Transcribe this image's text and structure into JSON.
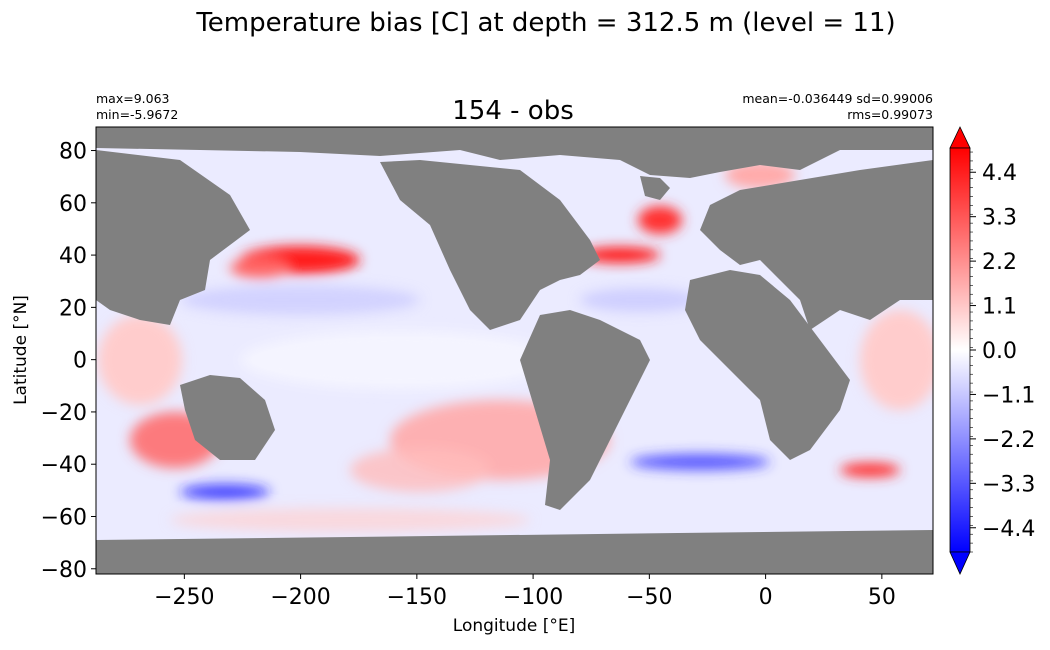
{
  "chart_data": {
    "type": "heatmap",
    "suptitle": "Temperature bias [C] at depth = 312.5 m (level = 11)",
    "title": "154 - obs",
    "stats": {
      "max": "max=9.063",
      "min": "min=-5.9672",
      "mean_sd": "mean=-0.036449 sd=0.99006",
      "rms": "rms=0.99073"
    },
    "xlabel": "Longitude [°E]",
    "ylabel": "Latitude [°N]",
    "xlim": [
      -288,
      72
    ],
    "ylim": [
      -82,
      89
    ],
    "xticks": [
      -250,
      -200,
      -150,
      -100,
      -50,
      0,
      50
    ],
    "xtick_labels": [
      "−250",
      "−200",
      "−150",
      "−100",
      "−50",
      "0",
      "50"
    ],
    "yticks": [
      80,
      60,
      40,
      20,
      0,
      -20,
      -40,
      -60,
      -80
    ],
    "ytick_labels": [
      "80",
      "60",
      "40",
      "20",
      "0",
      "−20",
      "−40",
      "−60",
      "−80"
    ],
    "colorbar": {
      "range": [
        -5,
        5
      ],
      "extend": "both",
      "ticks": [
        4.4,
        3.3,
        2.2,
        1.1,
        0.0,
        -1.1,
        -2.2,
        -3.3,
        -4.4
      ],
      "tick_labels": [
        "4.4",
        "3.3",
        "2.2",
        "1.1",
        "0.0",
        "−1.1",
        "−2.2",
        "−3.3",
        "−4.4"
      ],
      "minor_step": 0.22
    },
    "colormap": {
      "low": "#0000ff",
      "mid": "#ffffff",
      "high": "#ff0000",
      "land": "#808080"
    }
  }
}
